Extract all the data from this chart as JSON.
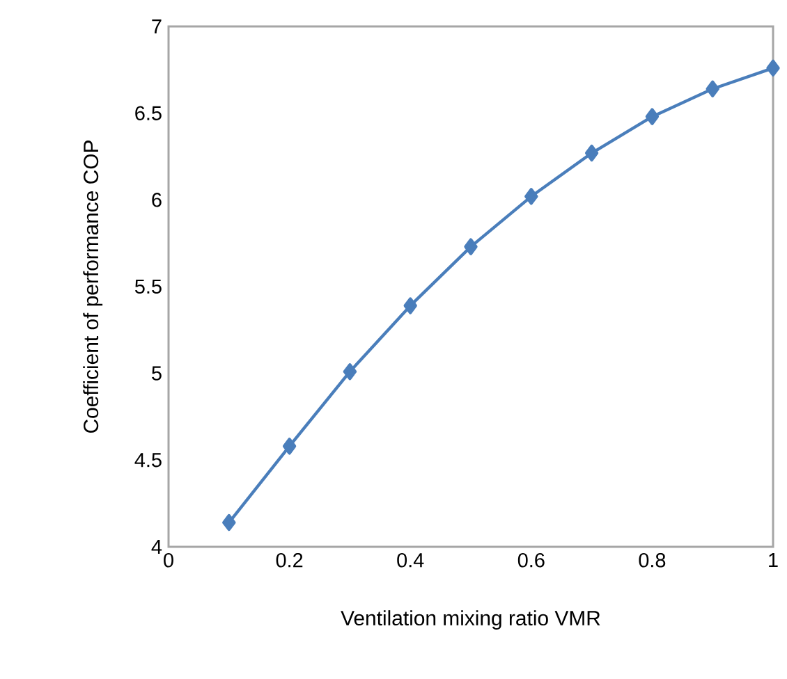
{
  "chart_data": {
    "type": "line",
    "xlabel": "Ventilation mixing ratio VMR",
    "ylabel": "Coefficient of performance COP",
    "x": [
      0.1,
      0.2,
      0.3,
      0.4,
      0.5,
      0.6,
      0.7,
      0.8,
      0.9,
      1.0
    ],
    "series": [
      {
        "color": "#4a7ebb",
        "values": [
          4.14,
          4.58,
          5.01,
          5.39,
          5.73,
          6.02,
          6.27,
          6.48,
          6.64,
          6.76
        ]
      }
    ],
    "xlim": [
      0,
      1
    ],
    "ylim": [
      4,
      7
    ],
    "xticks": [
      0,
      0.2,
      0.4,
      0.6,
      0.8,
      1
    ],
    "yticks": [
      4,
      4.5,
      5,
      5.5,
      6,
      6.5,
      7
    ],
    "marker": "diamond",
    "line_style": "solid"
  }
}
